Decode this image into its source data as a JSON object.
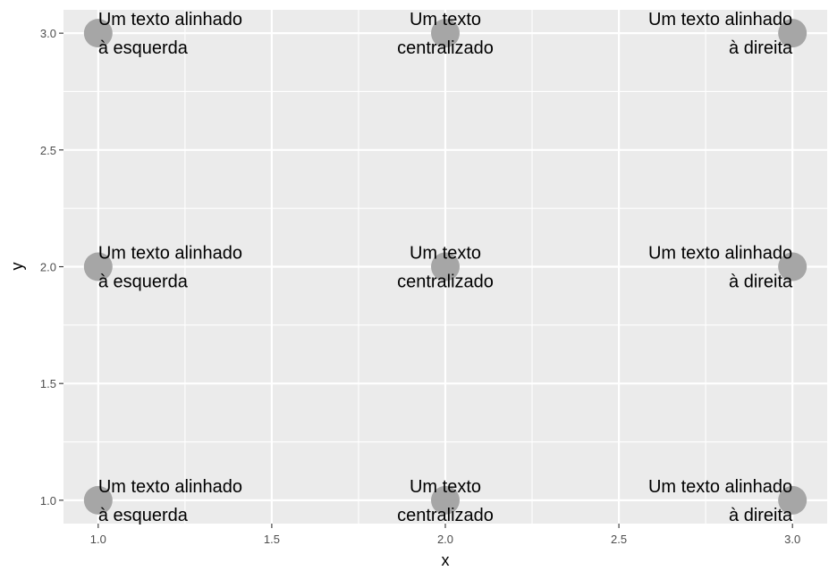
{
  "chart_data": {
    "type": "scatter",
    "title": "",
    "xlabel": "x",
    "ylabel": "y",
    "xlim": [
      0.9,
      3.1
    ],
    "ylim": [
      0.9,
      3.1
    ],
    "x_ticks": [
      1.0,
      1.5,
      2.0,
      2.5,
      3.0
    ],
    "x_tick_labels": [
      "1.0",
      "1.5",
      "2.0",
      "2.5",
      "3.0"
    ],
    "y_ticks": [
      1.0,
      1.5,
      2.0,
      2.5,
      3.0
    ],
    "y_tick_labels": [
      "1.0",
      "1.5",
      "2.0",
      "2.5",
      "3.0"
    ],
    "grid": true,
    "panel_background": "#ebebeb",
    "grid_color": "#ffffff",
    "point_color": "#a6a6a6",
    "text_color": "#000000",
    "points": [
      {
        "x": 1,
        "y": 1,
        "hjust": "left",
        "lines": [
          "Um texto alinhado",
          "à esquerda"
        ]
      },
      {
        "x": 1,
        "y": 2,
        "hjust": "left",
        "lines": [
          "Um texto alinhado",
          "à esquerda"
        ]
      },
      {
        "x": 1,
        "y": 3,
        "hjust": "left",
        "lines": [
          "Um texto alinhado",
          "à esquerda"
        ]
      },
      {
        "x": 2,
        "y": 1,
        "hjust": "center",
        "lines": [
          "Um texto",
          "centralizado"
        ]
      },
      {
        "x": 2,
        "y": 2,
        "hjust": "center",
        "lines": [
          "Um texto",
          "centralizado"
        ]
      },
      {
        "x": 2,
        "y": 3,
        "hjust": "center",
        "lines": [
          "Um texto",
          "centralizado"
        ]
      },
      {
        "x": 3,
        "y": 1,
        "hjust": "right",
        "lines": [
          "Um texto alinhado",
          "à direita"
        ]
      },
      {
        "x": 3,
        "y": 2,
        "hjust": "right",
        "lines": [
          "Um texto alinhado",
          "à direita"
        ]
      },
      {
        "x": 3,
        "y": 3,
        "hjust": "right",
        "lines": [
          "Um texto alinhado",
          "à direita"
        ]
      }
    ]
  }
}
